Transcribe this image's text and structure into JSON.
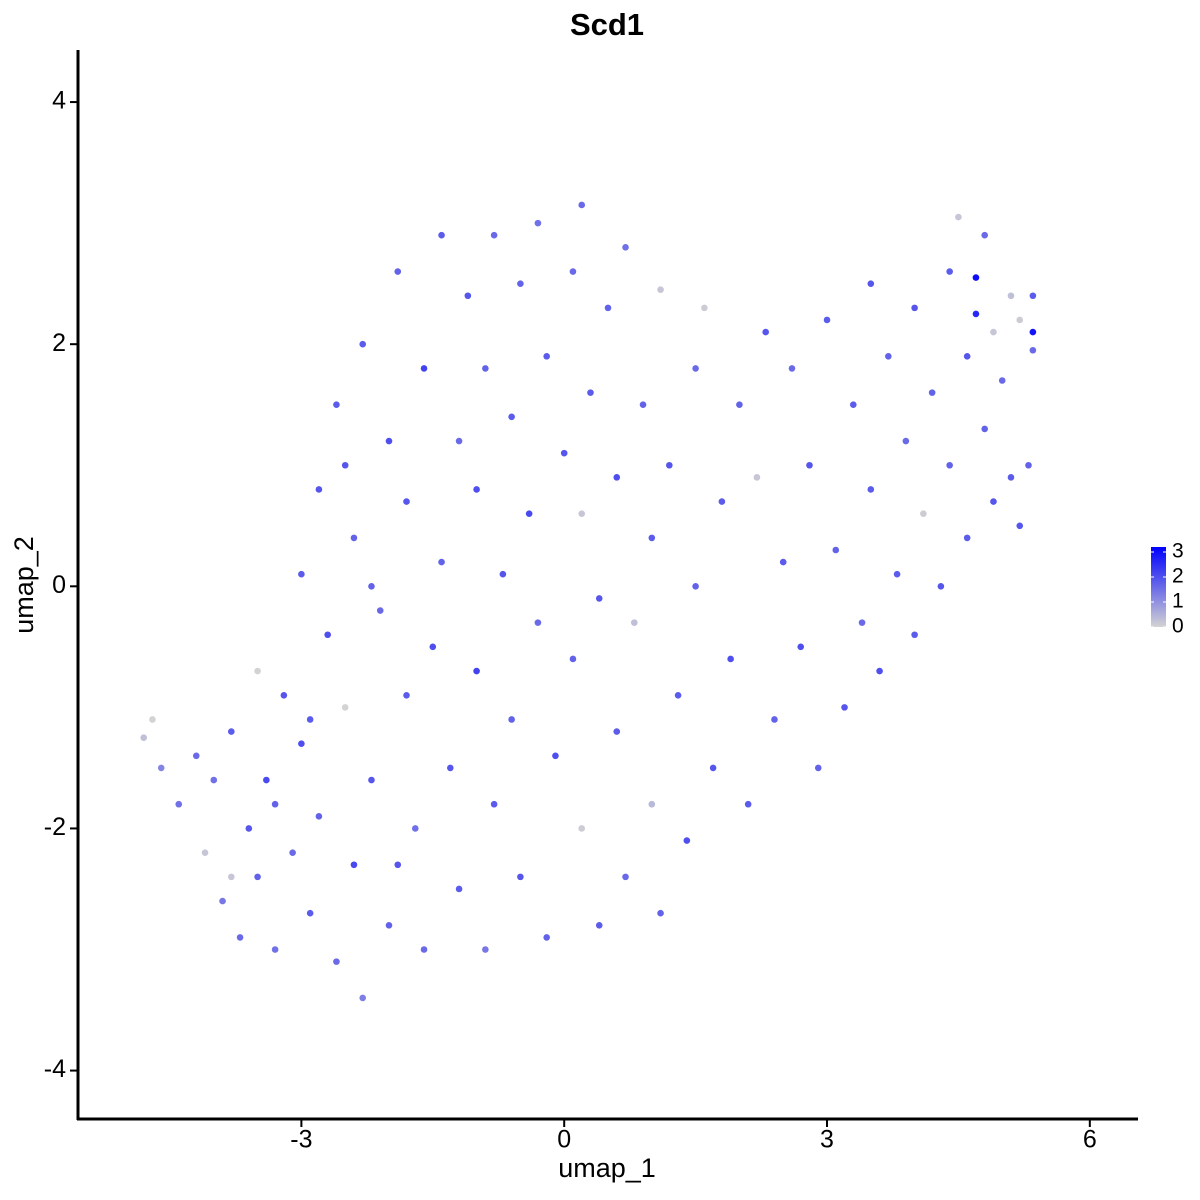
{
  "chart_data": {
    "type": "scatter",
    "title": "Scd1",
    "x_label": "umap_1",
    "y_label": "umap_2",
    "xlim": [
      -5.55,
      6.55
    ],
    "xticks": [
      -3,
      0,
      3,
      6
    ],
    "ylim": [
      -4.4,
      4.43
    ],
    "yticks": [
      -4,
      -2,
      0,
      2,
      4
    ],
    "grid": false,
    "color_scale": {
      "low": "#d3d3d3",
      "high": "#0000ff",
      "lim": [
        0,
        3.2
      ],
      "ticks": [
        0,
        1,
        2,
        3
      ]
    },
    "x": [
      -4.8,
      -4.7,
      -4.6,
      -4.4,
      -4.1,
      -4.0,
      -3.9,
      -3.8,
      -3.7,
      -3.6,
      -3.5,
      -3.5,
      -3.4,
      -3.3,
      -3.2,
      -3.1,
      -3.0,
      -3.0,
      -2.9,
      -2.8,
      -2.8,
      -2.7,
      -2.6,
      -2.6,
      -2.5,
      -2.4,
      -2.4,
      -2.3,
      -2.3,
      -2.2,
      -2.1,
      -2.0,
      -2.0,
      -1.9,
      -1.8,
      -1.8,
      -1.7,
      -1.6,
      -1.6,
      -1.5,
      -1.4,
      -1.4,
      -1.3,
      -1.2,
      -1.2,
      -1.1,
      -1.0,
      -1.0,
      -0.9,
      -0.9,
      -0.8,
      -0.8,
      -0.7,
      -0.6,
      -0.6,
      -0.5,
      -0.5,
      -0.4,
      -0.3,
      -0.3,
      -0.2,
      -0.2,
      -0.1,
      0.0,
      0.1,
      0.1,
      0.2,
      0.2,
      0.2,
      0.3,
      0.4,
      0.4,
      0.5,
      0.6,
      0.6,
      0.7,
      0.7,
      0.8,
      0.9,
      1.0,
      1.0,
      1.1,
      1.1,
      1.2,
      1.3,
      1.4,
      1.5,
      1.5,
      1.6,
      1.7,
      1.8,
      1.9,
      2.0,
      2.1,
      2.2,
      2.3,
      2.4,
      2.5,
      2.6,
      2.7,
      2.8,
      2.9,
      3.0,
      3.1,
      3.2,
      3.3,
      3.4,
      3.5,
      3.5,
      3.6,
      3.7,
      3.8,
      3.9,
      4.0,
      4.0,
      4.1,
      4.2,
      4.3,
      4.4,
      4.4,
      4.5,
      4.6,
      4.6,
      4.7,
      4.7,
      4.8,
      4.8,
      4.9,
      4.9,
      5.0,
      5.1,
      5.1,
      5.2,
      5.2,
      5.3,
      5.35,
      5.35,
      5.35,
      -3.8,
      -4.2,
      -3.3,
      -2.9,
      -2.5,
      -2.2,
      -1.9
    ],
    "y": [
      -1.25,
      -1.1,
      -1.5,
      -1.8,
      -2.2,
      -1.6,
      -2.6,
      -1.2,
      -2.9,
      -2.0,
      -0.7,
      -2.4,
      -1.6,
      -3.0,
      -0.9,
      -2.2,
      0.1,
      -1.3,
      -2.7,
      0.8,
      -1.9,
      -0.4,
      -3.1,
      1.5,
      -1.0,
      -2.3,
      0.4,
      -3.4,
      2.0,
      -1.6,
      -0.2,
      1.2,
      -2.8,
      2.6,
      -0.9,
      0.7,
      -2.0,
      1.8,
      -3.0,
      -0.5,
      2.9,
      0.2,
      -1.5,
      1.2,
      -2.5,
      2.4,
      -0.7,
      0.8,
      -3.0,
      1.8,
      -1.8,
      2.9,
      0.1,
      -1.1,
      1.4,
      -2.4,
      2.5,
      0.6,
      -0.3,
      3.0,
      -2.9,
      1.9,
      -1.4,
      1.1,
      -0.6,
      2.6,
      -2.0,
      0.6,
      3.15,
      1.6,
      -2.8,
      -0.1,
      2.3,
      -1.2,
      0.9,
      -2.4,
      2.8,
      -0.3,
      1.5,
      -1.8,
      0.4,
      -2.7,
      2.45,
      1.0,
      -0.9,
      -2.1,
      1.8,
      0.0,
      2.3,
      -1.5,
      0.7,
      -0.6,
      1.5,
      -1.8,
      0.9,
      2.1,
      -1.1,
      0.2,
      1.8,
      -0.5,
      1.0,
      -1.5,
      2.2,
      0.3,
      -1.0,
      1.5,
      -0.3,
      2.5,
      0.8,
      -0.7,
      1.9,
      0.1,
      1.2,
      2.3,
      -0.4,
      0.6,
      1.6,
      0.0,
      2.6,
      1.0,
      3.05,
      0.4,
      1.9,
      2.55,
      2.25,
      1.3,
      2.9,
      0.7,
      2.1,
      1.7,
      0.9,
      2.4,
      0.5,
      2.2,
      1.0,
      2.1,
      2.4,
      1.95,
      -2.4,
      -1.4,
      -1.8,
      -1.1,
      1.0,
      0.0,
      -2.3
    ],
    "values": [
      0.3,
      0,
      1.2,
      1.5,
      0.2,
      1.5,
      1.4,
      1.8,
      1.6,
      1.9,
      0,
      1.7,
      2.1,
      1.5,
      1.9,
      1.6,
      1.8,
      2.0,
      1.8,
      1.9,
      1.7,
      2.0,
      1.6,
      1.8,
      0,
      2.1,
      1.7,
      1.3,
      1.8,
      1.9,
      1.6,
      2.0,
      1.7,
      1.7,
      1.8,
      1.9,
      1.5,
      2.2,
      1.6,
      2.0,
      1.8,
      1.7,
      1.9,
      1.6,
      1.8,
      1.9,
      2.2,
      2.0,
      1.4,
      1.7,
      1.8,
      1.6,
      1.9,
      1.7,
      1.8,
      1.9,
      1.7,
      2.1,
      1.6,
      1.5,
      1.7,
      1.8,
      2.0,
      1.9,
      1.7,
      1.6,
      0.1,
      0.2,
      1.6,
      1.8,
      1.8,
      1.9,
      1.7,
      1.8,
      2.0,
      1.6,
      1.5,
      0.3,
      1.7,
      0.4,
      1.8,
      1.7,
      0.2,
      1.9,
      1.8,
      2.0,
      1.6,
      1.7,
      0.1,
      1.9,
      1.8,
      2.0,
      1.7,
      1.8,
      0.2,
      1.9,
      1.7,
      1.8,
      1.6,
      2.0,
      1.9,
      1.7,
      1.8,
      1.7,
      1.9,
      1.8,
      1.6,
      1.9,
      1.8,
      2.0,
      1.7,
      1.8,
      1.6,
      1.9,
      1.8,
      0.1,
      1.7,
      1.9,
      1.8,
      1.7,
      0.2,
      1.8,
      1.9,
      3.0,
      2.6,
      1.7,
      1.6,
      1.9,
      0.2,
      1.6,
      1.8,
      0.3,
      1.9,
      0.1,
      1.7,
      2.9,
      1.8,
      1.6,
      0.2,
      1.6,
      1.7,
      1.8,
      1.9,
      1.7,
      1.9
    ]
  }
}
